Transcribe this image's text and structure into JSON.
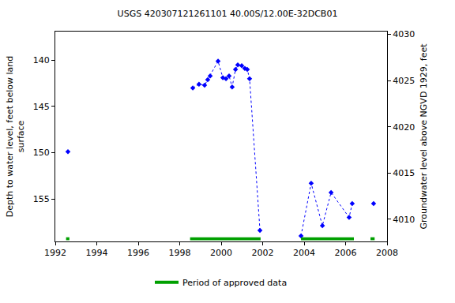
{
  "chart_data": {
    "type": "scatter",
    "title": "USGS 420307121261101 40.00S/12.00E-32DCB01",
    "y_label": "Depth to water level, feet below land\nsurface",
    "y2_label": "Groundwater level above NGVD 1929, feet",
    "x": [
      1992.61,
      1995.5,
      1998.63,
      1998.93,
      1999.2,
      1999.35,
      1999.47,
      1999.85,
      2000.08,
      2000.23,
      2000.38,
      2000.53,
      2000.69,
      2000.8,
      2000.99,
      2001.14,
      2001.26,
      2001.37,
      2001.87,
      2002.9,
      2003.85,
      2004.34,
      2004.88,
      2005.3,
      2006.17,
      2006.32,
      2006.8,
      2007.35
    ],
    "series": [
      {
        "color": "#0000ff",
        "marker": "diamond",
        "line_style": "dot",
        "values": [
          149.9,
          null,
          143.0,
          142.6,
          142.7,
          142.1,
          141.7,
          140.1,
          141.9,
          142.0,
          141.7,
          142.9,
          141.0,
          140.5,
          140.6,
          140.9,
          141.0,
          142.0,
          158.4,
          null,
          159.0,
          153.3,
          157.9,
          154.3,
          157.0,
          155.5,
          null,
          155.5
        ]
      }
    ],
    "xlim": [
      1992,
      2008
    ],
    "xticks": [
      1992,
      1994,
      1996,
      1998,
      2000,
      2002,
      2004,
      2006,
      2008
    ],
    "ylim": [
      159.6,
      136.9
    ],
    "yticks": [
      140,
      145,
      150,
      155
    ],
    "y2lim": [
      4007.6,
      4030.3
    ],
    "y2ticks": [
      4010,
      4015,
      4020,
      4025,
      4030
    ],
    "approved_periods": {
      "name": "Period of approved data",
      "color": "#00a000",
      "ranges": [
        [
          1992.52,
          1992.68
        ],
        [
          1998.5,
          2001.9
        ],
        [
          2003.85,
          2006.4
        ],
        [
          2007.2,
          2007.4
        ]
      ]
    },
    "grid": false,
    "legend": "bottom"
  }
}
